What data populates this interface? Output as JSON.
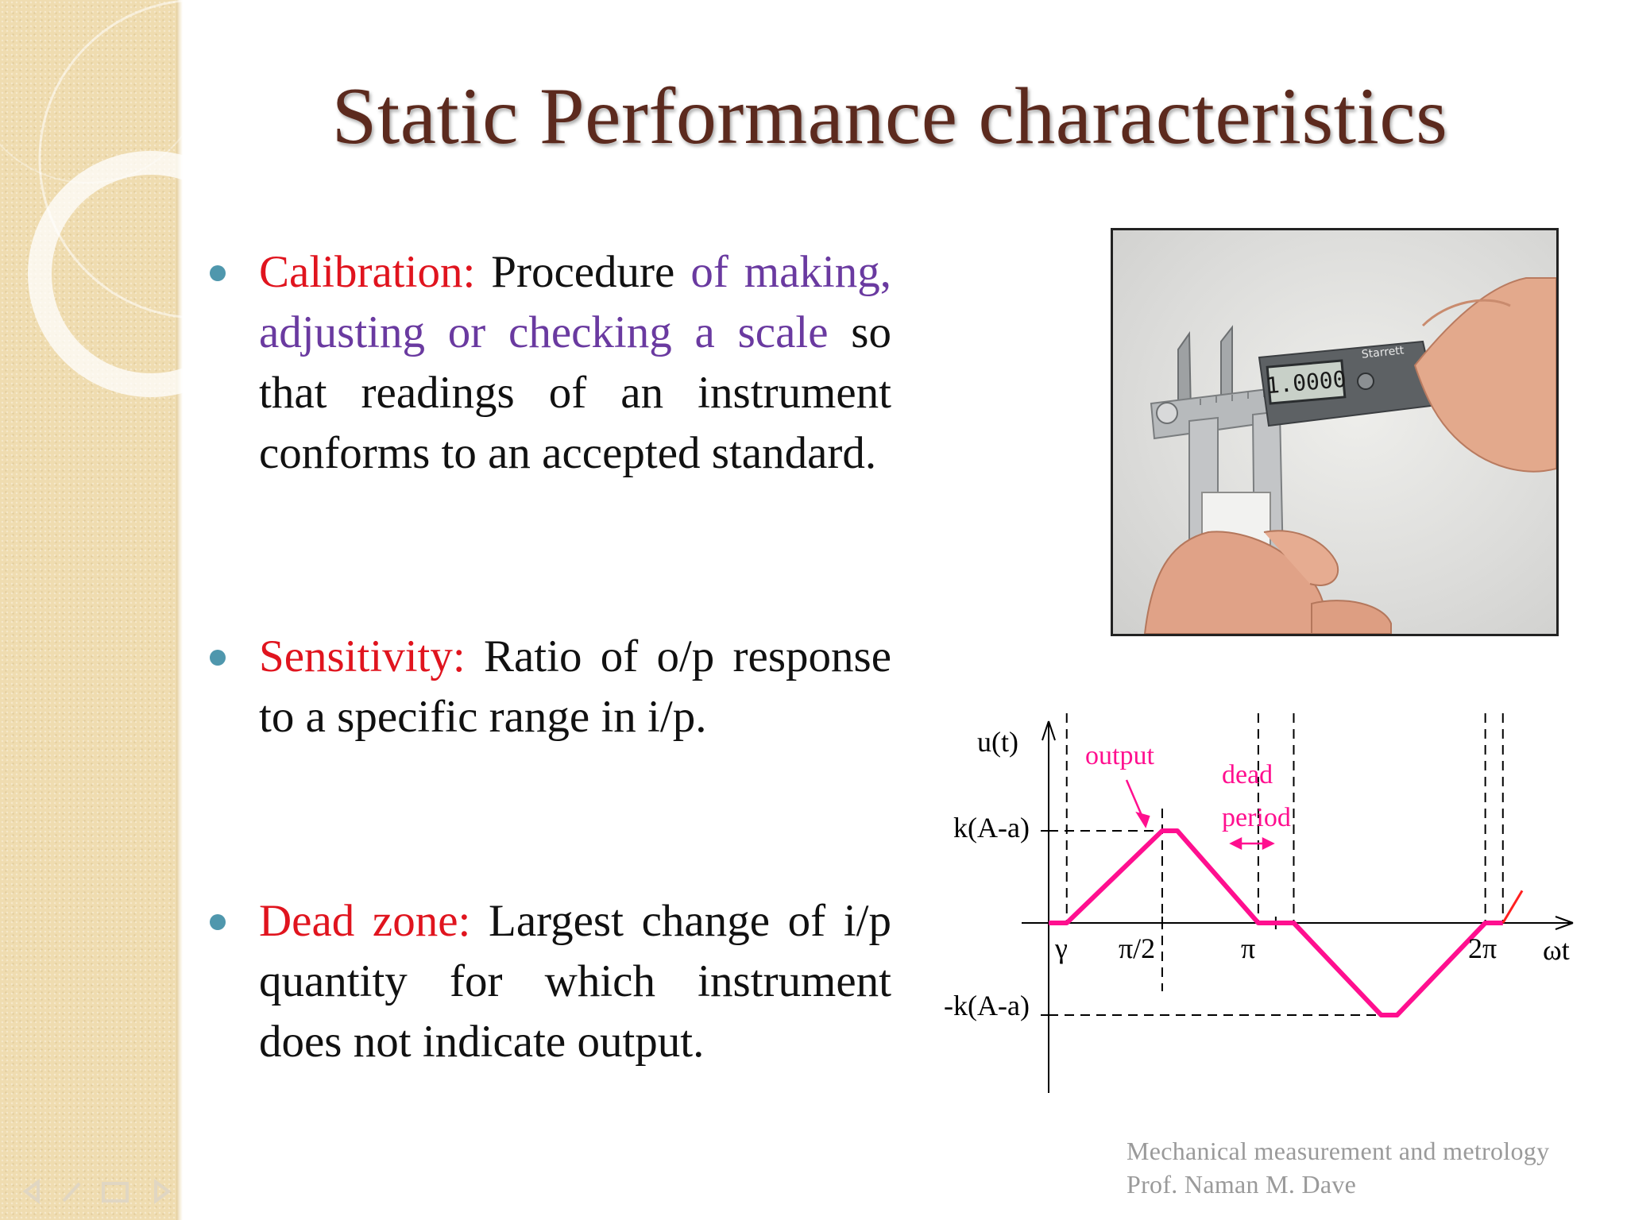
{
  "slide": {
    "title": "Static Performance characteristics"
  },
  "bullets": [
    {
      "term": "Calibration:",
      "text_parts": [
        {
          "t": " Procedure ",
          "style": "normal"
        },
        {
          "t": "of making, adjusting or checking a scale",
          "style": "purple"
        },
        {
          "t": " so that readings of an instrument conforms to an accepted standard.",
          "style": "normal"
        }
      ]
    },
    {
      "term": "Sensitivity:",
      "text_parts": [
        {
          "t": " Ratio of o/p response to a specific range in i/p.",
          "style": "normal"
        }
      ]
    },
    {
      "term": "Dead zone:",
      "text_parts": [
        {
          "t": " Largest change of i/p quantity for which instrument does not indicate output.",
          "style": "normal"
        }
      ]
    }
  ],
  "photo": {
    "display_reading": "1.0000",
    "brand": "Starrett"
  },
  "chart_data": {
    "type": "line",
    "title": "",
    "ylabel": "u(t)",
    "xlabel": "ωt",
    "y_tick_labels": [
      "k(A-a)",
      "-k(A-a)"
    ],
    "x_tick_labels": [
      "γ",
      "π/2",
      "π",
      "2π"
    ],
    "annotations": [
      "output",
      "dead",
      "period"
    ],
    "series": [
      {
        "color": "#ff0f8f",
        "x_rad": [
          0,
          0.25,
          1.5708,
          1.78,
          2.9,
          3.1416,
          3.39,
          4.6,
          4.82,
          6.04,
          6.2832,
          6.55
        ],
        "y_norm": [
          0,
          0,
          1,
          1,
          0,
          0,
          0,
          -1,
          -1,
          0,
          0,
          0.35
        ]
      }
    ]
  },
  "footer": {
    "course": "Mechanical measurement and metrology",
    "author": "Prof. Naman M. Dave"
  },
  "colors": {
    "title": "#5c2a1e",
    "term": "#e0141e",
    "highlight": "#6a3aa0",
    "bullet": "#4f97ad",
    "curve": "#ff0f8f"
  }
}
